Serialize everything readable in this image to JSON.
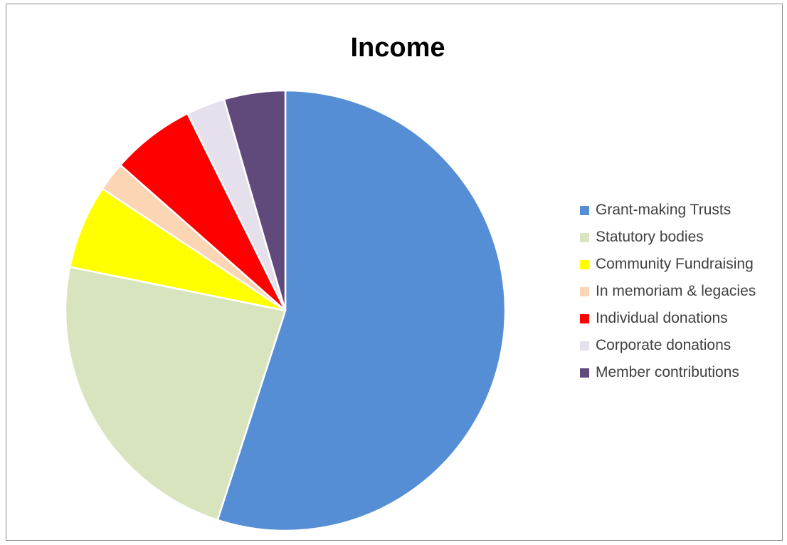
{
  "chart_data": {
    "type": "pie",
    "title": "Income",
    "categories": [
      "Grant-making Trusts",
      "Statutory bodies",
      "Community Fundraising",
      "In memoriam & legacies",
      "Individual donations",
      "Corporate donations",
      "Member contributions"
    ],
    "values": [
      56.2,
      23.7,
      6.3,
      2.2,
      6.3,
      2.9,
      4.6
    ],
    "unit": "%",
    "colors": [
      "#558ed5",
      "#d7e4bd",
      "#ffff00",
      "#fcd5b5",
      "#ff0000",
      "#e6e0ec",
      "#604a7b"
    ],
    "start_angle": "12 o'clock",
    "direction": "clockwise",
    "legend_position": "right"
  }
}
